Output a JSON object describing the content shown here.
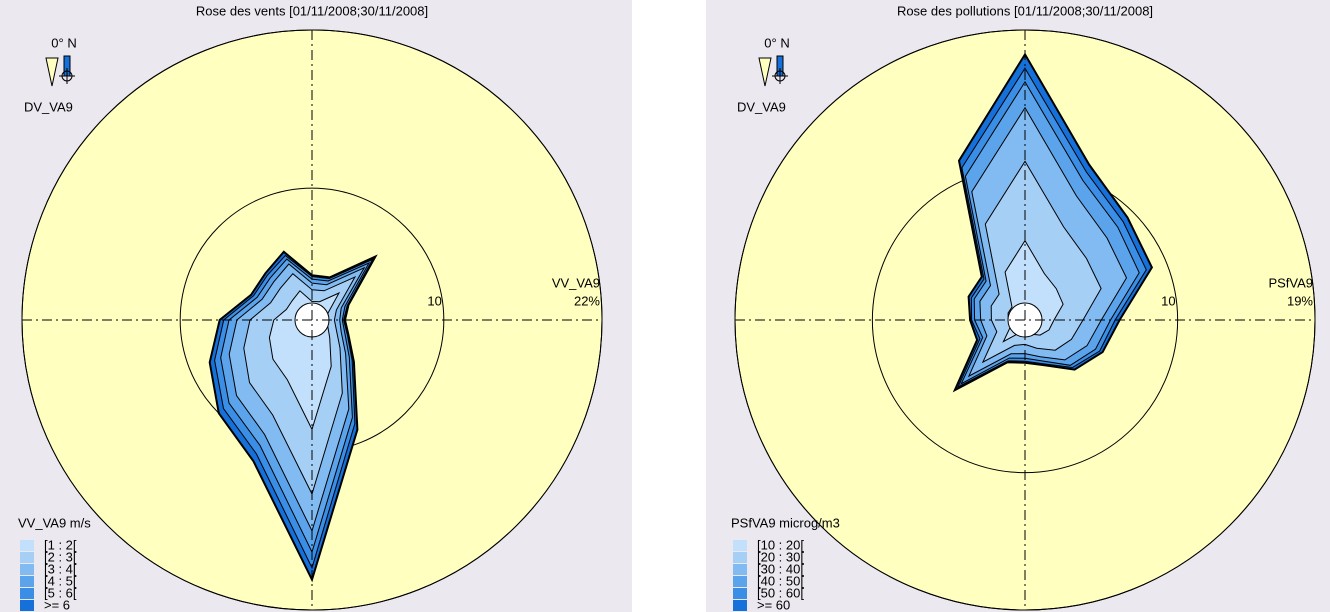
{
  "chart_data": [
    {
      "type": "rose",
      "title": "Rose des vents [01/11/2008;30/11/2008]",
      "direction_label": "0° N",
      "direction_variable": "DV_VA9",
      "radial_variable": "VV_VA9",
      "legend_title": "VV_VA9 m/s",
      "rlim": [
        0,
        22
      ],
      "rticks": [
        10,
        {
          "value": 22,
          "label": "22%"
        }
      ],
      "series": [
        {
          "name": "[1 : 2[",
          "color": "#c2e0fb",
          "values": [
            1.4,
            1.5,
            2.9,
            1.3,
            1.1,
            1.3,
            1.9,
            3.8,
            8.3,
            4.9,
            4.2,
            3.5,
            2.9,
            2.1,
            2.1,
            2.4
          ]
        },
        {
          "name": "[2 : 3[",
          "color": "#a6cff6",
          "values": [
            0.9,
            0.9,
            1.7,
            0.7,
            0.6,
            0.7,
            1.1,
            2.2,
            4.9,
            2.9,
            2.5,
            2.1,
            1.8,
            1.3,
            1.3,
            1.4
          ]
        },
        {
          "name": "[3 : 4[",
          "color": "#82bbf2",
          "values": [
            0.5,
            0.5,
            1.0,
            0.4,
            0.4,
            0.4,
            0.6,
            1.3,
            2.8,
            1.6,
            1.4,
            1.2,
            1.0,
            0.7,
            0.7,
            0.8
          ]
        },
        {
          "name": "[4 : 5[",
          "color": "#5ba4ec",
          "values": [
            0.3,
            0.3,
            0.5,
            0.3,
            0.2,
            0.3,
            0.4,
            0.7,
            1.6,
            0.9,
            0.8,
            0.7,
            0.6,
            0.4,
            0.4,
            0.4
          ]
        },
        {
          "name": "[5 : 6[",
          "color": "#3a8ee5",
          "values": [
            0.2,
            0.2,
            0.4,
            0.2,
            0.1,
            0.2,
            0.3,
            0.5,
            1.2,
            0.7,
            0.6,
            0.5,
            0.4,
            0.3,
            0.3,
            0.3
          ]
        },
        {
          "name": ">= 6",
          "color": "#1570da",
          "values": [
            0.1,
            0.1,
            0.3,
            0.1,
            0.1,
            0.1,
            0.2,
            0.5,
            0.9,
            0.6,
            0.5,
            0.4,
            0.3,
            0.2,
            0.2,
            0.3
          ]
        }
      ]
    },
    {
      "type": "rose",
      "title": "Rose des pollutions [01/11/2008;30/11/2008]",
      "direction_label": "0° N",
      "direction_variable": "DV_VA9",
      "radial_variable": "PSfVA9",
      "legend_title": "PSfVA9 microg/m3",
      "rlim": [
        0,
        19
      ],
      "rticks": [
        10,
        {
          "value": 19,
          "label": "19%"
        }
      ],
      "series": [
        {
          "name": "[10 : 20[",
          "color": "#c2e0fb",
          "values": [
            5.2,
            3.3,
            2.9,
            2.7,
            1.9,
            1.7,
            1.4,
            1.0,
            0.8,
            0.9,
            2.0,
            1.0,
            1.1,
            1.2,
            1.2,
            3.4
          ]
        },
        {
          "name": "[20 : 30[",
          "color": "#a6cff6",
          "values": [
            5.2,
            3.3,
            2.8,
            2.7,
            1.9,
            1.6,
            1.4,
            1.0,
            0.8,
            0.9,
            1.9,
            1.0,
            1.1,
            1.2,
            1.2,
            3.4
          ]
        },
        {
          "name": "[30 : 40[",
          "color": "#82bbf2",
          "values": [
            3.5,
            2.2,
            1.9,
            1.8,
            1.2,
            1.1,
            0.9,
            0.6,
            0.6,
            0.6,
            1.3,
            0.7,
            0.7,
            0.8,
            0.8,
            2.3
          ]
        },
        {
          "name": "[40 : 50[",
          "color": "#5ba4ec",
          "values": [
            1.7,
            1.1,
            1.0,
            0.9,
            0.6,
            0.6,
            0.5,
            0.3,
            0.3,
            0.3,
            0.7,
            0.3,
            0.4,
            0.4,
            0.4,
            1.1
          ]
        },
        {
          "name": "[50 : 60[",
          "color": "#3a8ee5",
          "values": [
            0.9,
            0.6,
            0.5,
            0.5,
            0.3,
            0.3,
            0.2,
            0.2,
            0.2,
            0.2,
            0.3,
            0.2,
            0.2,
            0.2,
            0.2,
            0.6
          ]
        },
        {
          "name": ">= 60",
          "color": "#1570da",
          "values": [
            0.9,
            0.5,
            0.4,
            0.4,
            0.3,
            0.2,
            0.2,
            0.1,
            0.1,
            0.1,
            0.3,
            0.2,
            0.1,
            0.2,
            0.2,
            0.5
          ]
        }
      ]
    }
  ]
}
